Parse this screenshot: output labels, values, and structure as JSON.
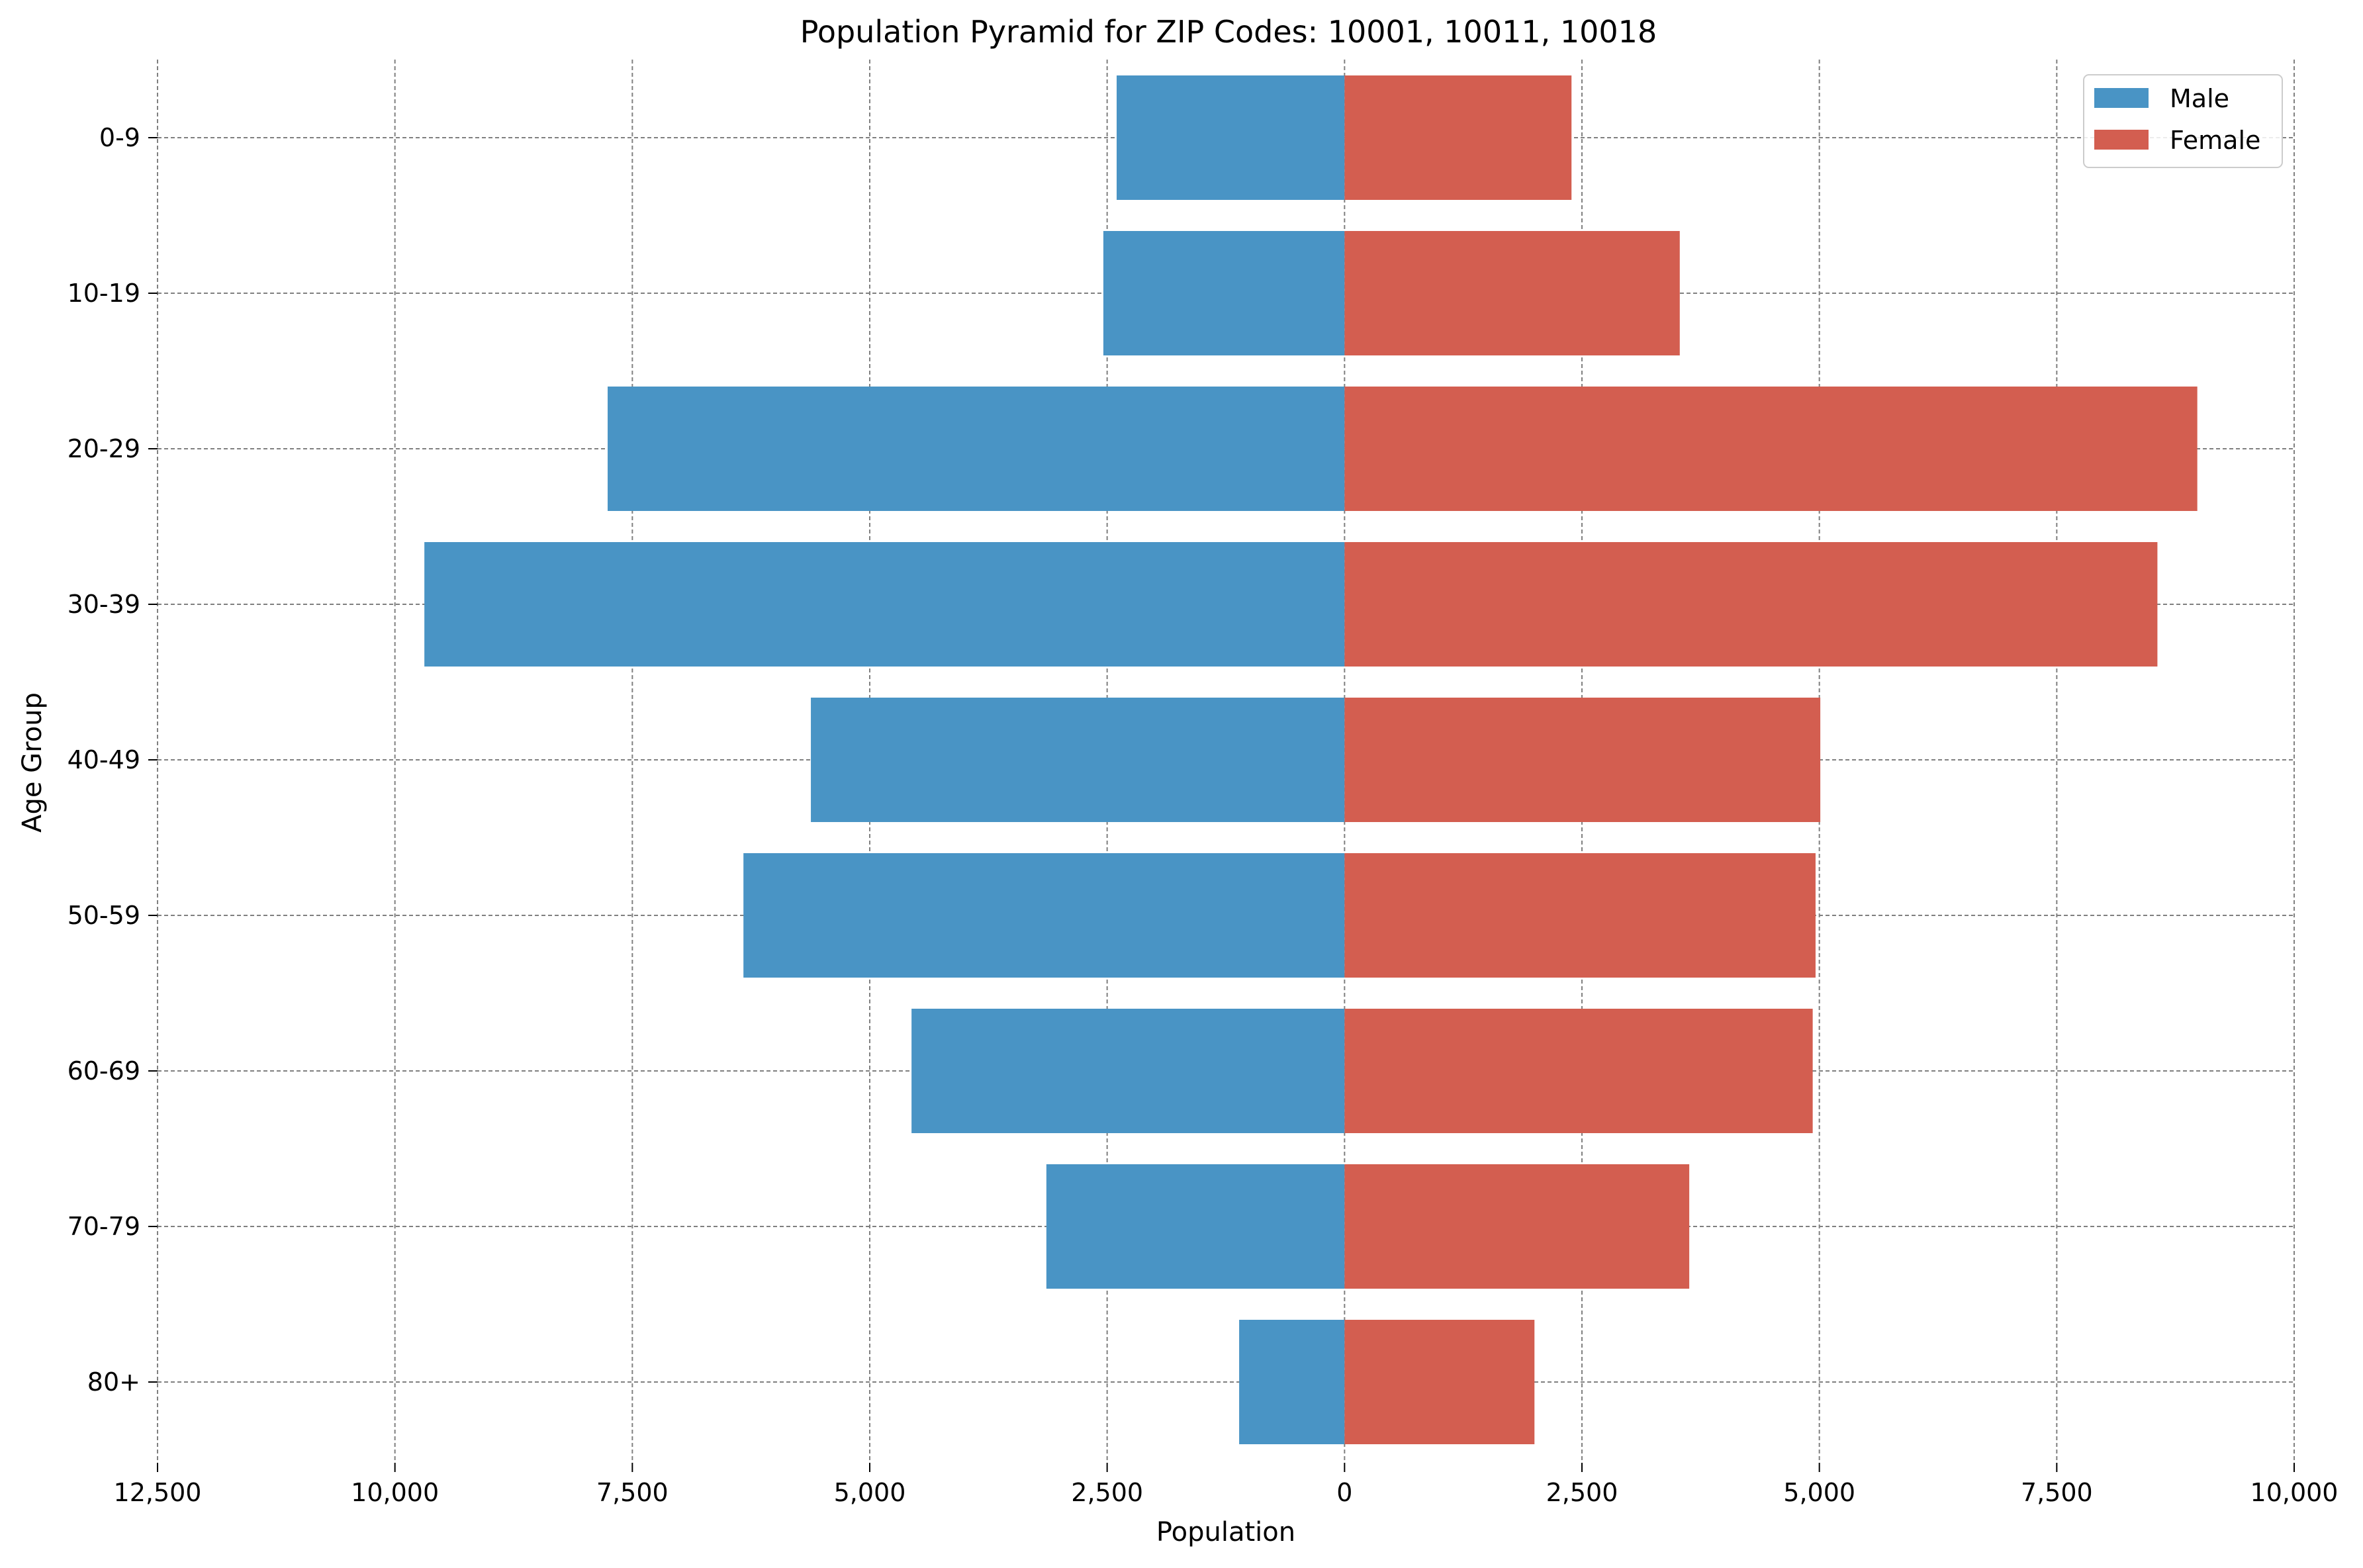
{
  "chart_data": {
    "type": "bar",
    "orientation": "horizontal-pyramid",
    "title": "Population Pyramid for ZIP Codes: 10001, 10011, 10018",
    "xlabel": "Population",
    "ylabel": "Age Group",
    "categories": [
      "0-9",
      "10-19",
      "20-29",
      "30-39",
      "40-49",
      "50-59",
      "60-69",
      "70-79",
      "80+"
    ],
    "series": [
      {
        "name": "Male",
        "color": "#4994c5",
        "direction": "left",
        "values": [
          2400,
          2540,
          7760,
          9690,
          5620,
          6330,
          4560,
          3140,
          1110
        ]
      },
      {
        "name": "Female",
        "color": "#d35e50",
        "direction": "right",
        "values": [
          2390,
          3530,
          8980,
          8560,
          5010,
          4960,
          4930,
          3630,
          2000
        ]
      }
    ],
    "xlim": [
      -12500,
      10000
    ],
    "xticks": [
      -12500,
      -10000,
      -7500,
      -5000,
      -2500,
      0,
      2500,
      5000,
      7500,
      10000
    ],
    "xtick_labels": [
      "12,500",
      "10,000",
      "7,500",
      "5,000",
      "2,500",
      "0",
      "2,500",
      "5,000",
      "7,500",
      "10,000"
    ],
    "grid": true,
    "legend_position": "top-right"
  }
}
